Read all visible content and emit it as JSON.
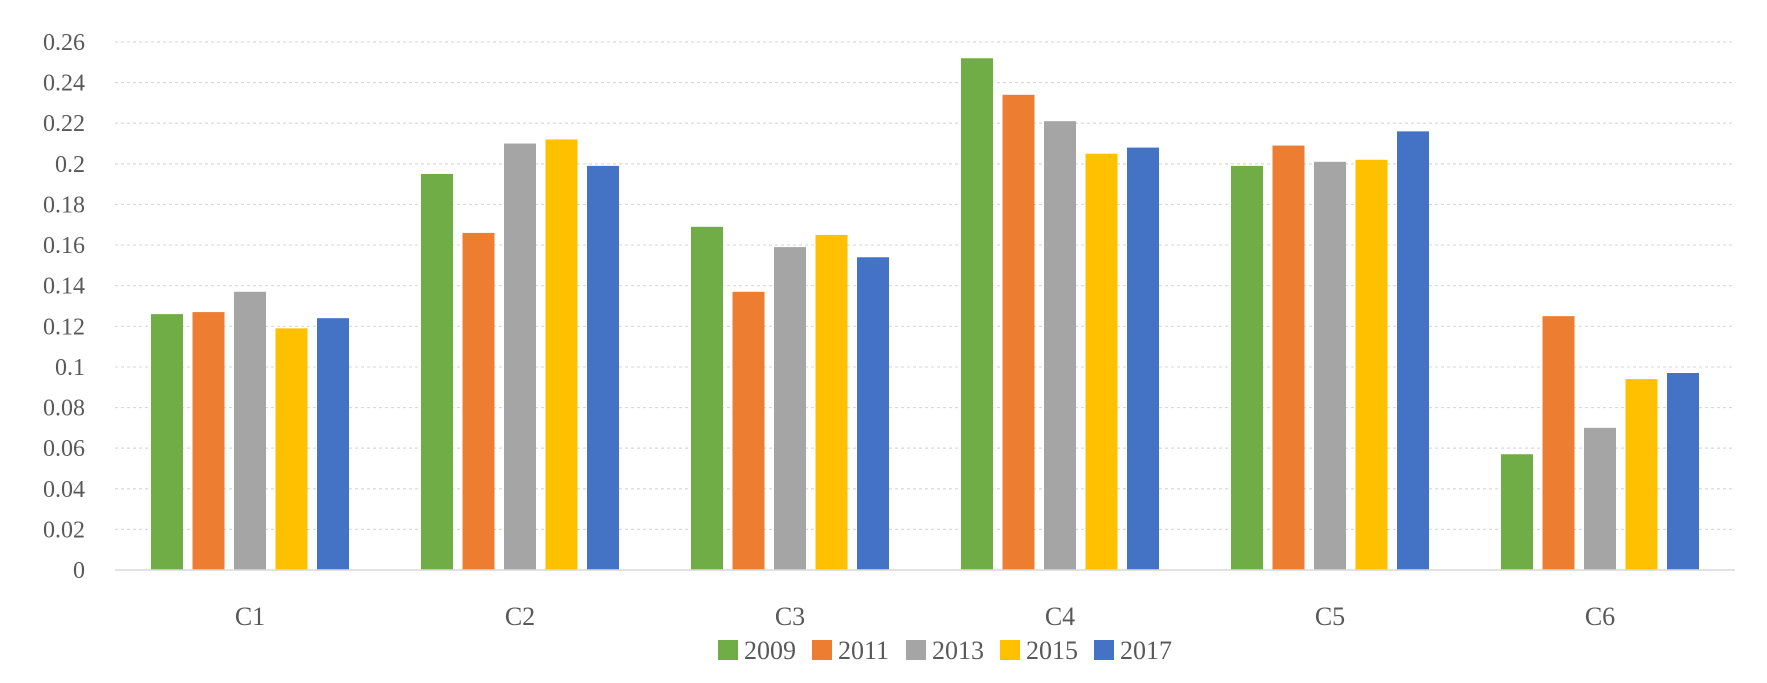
{
  "chart_data": {
    "type": "bar",
    "title": "",
    "xlabel": "",
    "ylabel": "",
    "categories": [
      "C1",
      "C2",
      "C3",
      "C4",
      "C5",
      "C6"
    ],
    "yticks": [
      "0",
      "0.02",
      "0.04",
      "0.06",
      "0.08",
      "0.1",
      "0.12",
      "0.14",
      "0.16",
      "0.18",
      "0.2",
      "0.22",
      "0.24",
      "0.26"
    ],
    "ylim": [
      0,
      0.26
    ],
    "grid": true,
    "legend_position": "bottom",
    "series": [
      {
        "name": "2009",
        "color": "#70AD47",
        "values": [
          0.126,
          0.195,
          0.169,
          0.252,
          0.199,
          0.057
        ]
      },
      {
        "name": "2011",
        "color": "#ED7D31",
        "values": [
          0.127,
          0.166,
          0.137,
          0.234,
          0.209,
          0.125
        ]
      },
      {
        "name": "2013",
        "color": "#A5A5A5",
        "values": [
          0.137,
          0.21,
          0.159,
          0.221,
          0.201,
          0.07
        ]
      },
      {
        "name": "2015",
        "color": "#FFC000",
        "values": [
          0.119,
          0.212,
          0.165,
          0.205,
          0.202,
          0.094
        ]
      },
      {
        "name": "2017",
        "color": "#4472C4",
        "values": [
          0.124,
          0.199,
          0.154,
          0.208,
          0.216,
          0.097
        ]
      }
    ]
  }
}
